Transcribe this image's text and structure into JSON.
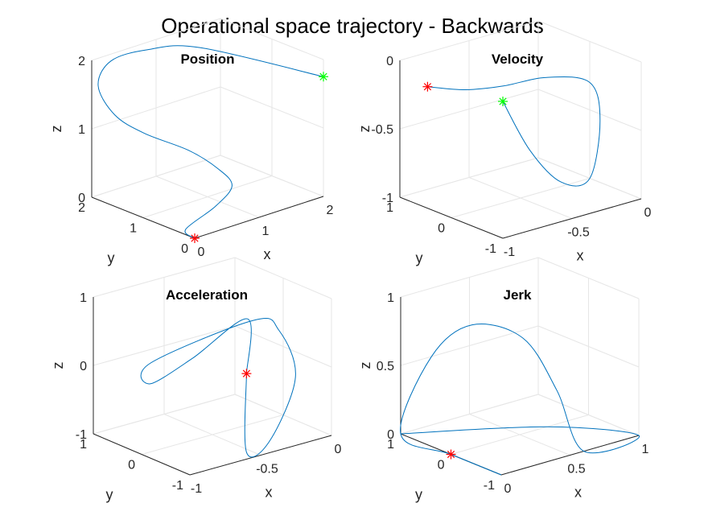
{
  "figure": {
    "suptitle": "Operational space trajectory - Backwards"
  },
  "colors": {
    "line": "#0072bd",
    "start_marker": "#ff0000",
    "end_marker": "#00ff00"
  },
  "chart_data": [
    {
      "type": "line3d",
      "title": "Position",
      "xlabel": "x",
      "ylabel": "y",
      "zlabel": "z",
      "xlim": [
        0,
        2
      ],
      "ylim": [
        0,
        2
      ],
      "zlim": [
        0,
        2
      ],
      "xticks": [
        0,
        1,
        2
      ],
      "yticks": [
        0,
        1,
        2
      ],
      "zticks": [
        0,
        1,
        2
      ],
      "tick_labels": {
        "x": [
          "0",
          "1",
          "2"
        ],
        "y": [
          "0",
          "1",
          "2"
        ],
        "z": [
          "0",
          "1",
          "2"
        ]
      },
      "grid": true,
      "start_marker": {
        "shape": "asterisk",
        "color": "red",
        "point": [
          0,
          0,
          0
        ]
      },
      "end_marker": {
        "shape": "asterisk",
        "color": "green",
        "point": [
          2,
          0,
          1.75
        ]
      },
      "series": [
        {
          "points": [
            [
              0,
              0,
              0
            ],
            [
              0.1,
              0.3,
              0.01
            ],
            [
              0.8,
              0.6,
              0.04
            ],
            [
              1.3,
              0.9,
              0.1
            ],
            [
              1.4,
              1.3,
              0.2
            ],
            [
              1.1,
              1.5,
              0.5
            ],
            [
              0.5,
              1.6,
              0.9
            ],
            [
              0.2,
              1.8,
              1.2
            ],
            [
              0.1,
              2.0,
              1.6
            ],
            [
              0.3,
              2.0,
              1.9
            ],
            [
              0.7,
              1.8,
              2.0
            ],
            [
              1.2,
              1.4,
              2.0
            ],
            [
              2.0,
              0,
              1.75
            ]
          ]
        }
      ]
    },
    {
      "type": "line3d",
      "title": "Velocity",
      "xlabel": "x",
      "ylabel": "y",
      "zlabel": "z",
      "xlim": [
        -1,
        0
      ],
      "ylim": [
        -1,
        1
      ],
      "zlim": [
        -1,
        0
      ],
      "xticks": [
        -1,
        -0.5,
        0
      ],
      "yticks": [
        -1,
        0,
        1
      ],
      "zticks": [
        -1,
        -0.5,
        0
      ],
      "tick_labels": {
        "x": [
          "-1",
          "-0.5",
          "0"
        ],
        "y": [
          "-1",
          "0",
          "1"
        ],
        "z": [
          "-1",
          "-0.5",
          "0"
        ]
      },
      "grid": true,
      "start_marker": {
        "shape": "asterisk",
        "color": "red",
        "point": [
          -0.8,
          1,
          -0.25
        ]
      },
      "end_marker": {
        "shape": "asterisk",
        "color": "green",
        "point": [
          -1,
          -1,
          0
        ]
      },
      "series": [
        {
          "points": [
            [
              -0.8,
              1,
              -0.25
            ],
            [
              -0.6,
              0.8,
              -0.3
            ],
            [
              -0.4,
              0.6,
              -0.3
            ],
            [
              -0.2,
              0.3,
              -0.25
            ],
            [
              0,
              0,
              -0.3
            ],
            [
              0,
              -0.2,
              -0.55
            ],
            [
              -0.15,
              -0.4,
              -0.9
            ],
            [
              -0.45,
              -0.65,
              -0.8
            ],
            [
              -0.75,
              -0.85,
              -0.45
            ],
            [
              -1,
              -1,
              0
            ]
          ]
        }
      ]
    },
    {
      "type": "line3d",
      "title": "Acceleration",
      "xlabel": "x",
      "ylabel": "y",
      "zlabel": "z",
      "xlim": [
        -1,
        0
      ],
      "ylim": [
        -1,
        1
      ],
      "zlim": [
        -1,
        1
      ],
      "xticks": [
        -1,
        -0.5,
        0
      ],
      "yticks": [
        -1,
        0,
        1
      ],
      "zticks": [
        -1,
        0,
        1
      ],
      "tick_labels": {
        "x": [
          "-1",
          "-0.5",
          "0"
        ],
        "y": [
          "-1",
          "0",
          "1"
        ],
        "z": [
          "-1",
          "0",
          "1"
        ]
      },
      "grid": true,
      "start_marker": {
        "shape": "asterisk",
        "color": "red",
        "point": [
          -0.6,
          -1,
          0.25
        ]
      },
      "series": [
        {
          "points": [
            [
              -0.6,
              -1,
              0.25
            ],
            [
              -0.6,
              -1,
              -0.9
            ],
            [
              -0.35,
              -0.75,
              -0.95
            ],
            [
              -0.05,
              -0.4,
              -0.3
            ],
            [
              -0.2,
              -0.5,
              0.5
            ],
            [
              -0.55,
              -1,
              1
            ],
            [
              -0.8,
              0.4,
              0.1
            ],
            [
              -0.6,
              1,
              -0.5
            ],
            [
              -0.3,
              1,
              -0.3
            ],
            [
              -0.15,
              0.3,
              0.4
            ],
            [
              -0.6,
              -1,
              0.25
            ]
          ]
        }
      ]
    },
    {
      "type": "line3d",
      "title": "Jerk",
      "xlabel": "x",
      "ylabel": "y",
      "zlabel": "z",
      "xlim": [
        0,
        1
      ],
      "ylim": [
        -1,
        1
      ],
      "zlim": [
        0,
        1
      ],
      "xticks": [
        0,
        0.5,
        1
      ],
      "yticks": [
        -1,
        0,
        1
      ],
      "zticks": [
        0,
        0.5,
        1
      ],
      "tick_labels": {
        "x": [
          "0",
          "0.5",
          "1"
        ],
        "y": [
          "-1",
          "0",
          "1"
        ],
        "z": [
          "0",
          "0.5",
          "1"
        ]
      },
      "grid": true,
      "start_marker": {
        "shape": "asterisk",
        "color": "red",
        "point": [
          0,
          0,
          0
        ]
      },
      "series": [
        {
          "points": [
            [
              0,
              -1,
              0
            ],
            [
              0,
              0,
              0
            ],
            [
              0,
              1,
              0
            ],
            [
              0.15,
              0.8,
              0.55
            ],
            [
              0.3,
              0.4,
              0.8
            ],
            [
              0.45,
              -0.2,
              0.75
            ],
            [
              0.55,
              -0.6,
              0.4
            ],
            [
              0.6,
              -1,
              0
            ],
            [
              1,
              -1,
              0
            ],
            [
              0.7,
              0,
              0
            ],
            [
              0,
              1,
              0
            ]
          ]
        }
      ]
    }
  ]
}
